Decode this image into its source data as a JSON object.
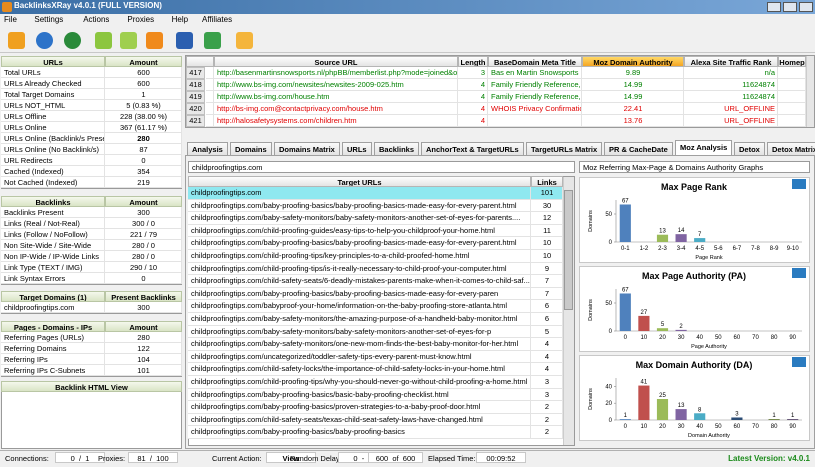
{
  "window": {
    "title": "BacklinksXRay v4.0.1 (FULL VERSION)"
  },
  "menu": [
    "File",
    "Settings",
    "Actions",
    "Proxies",
    "Help",
    "Affiliates"
  ],
  "left_tables": [
    {
      "headers": [
        "URLs",
        "Amount"
      ],
      "bold_row": 6,
      "rows": [
        [
          "Total URLs",
          "600"
        ],
        [
          "URLs Already Checked",
          "600"
        ],
        [
          "Total Target Domains",
          "1"
        ],
        [
          "URLs NOT_HTML",
          "5 (0.83 %)"
        ],
        [
          "URLs Offline",
          "228 (38.00 %)"
        ],
        [
          "URLs Online",
          "367 (61.17 %)"
        ],
        [
          "URLs Online (Backlink/s Present)",
          "280"
        ],
        [
          "URLs Online (No Backlink/s)",
          "87"
        ],
        [
          "URL Redirects",
          "0"
        ],
        [
          "Cached (Indexed)",
          "354"
        ],
        [
          "Not Cached (Indexed)",
          "219"
        ]
      ]
    },
    {
      "headers": [
        "Backlinks",
        "Amount"
      ],
      "rows": [
        [
          "Backlinks Present",
          "300"
        ],
        [
          "Links (Real / Not-Real)",
          "300 / 0"
        ],
        [
          "Links (Follow / NoFollow)",
          "221 / 79"
        ],
        [
          "Non Site-Wide / Site-Wide",
          "280 / 0"
        ],
        [
          "Non IP-Wide / IP-Wide Links",
          "280 / 0"
        ],
        [
          "Link Type (TEXT / IMG)",
          "290 / 10"
        ],
        [
          "Link Syntax Errors",
          "0"
        ]
      ]
    },
    {
      "headers": [
        "Target Domains (1)",
        "Present Backlinks"
      ],
      "rows": [
        [
          "childproofingtips.com",
          "300"
        ]
      ]
    },
    {
      "headers": [
        "Pages - Domains - IPs",
        "Amount"
      ],
      "rows": [
        [
          "Referring Pages (URLs)",
          "280"
        ],
        [
          "Referring Domains",
          "122"
        ],
        [
          "Referring IPs",
          "104"
        ],
        [
          "Referring IPs C-Subnets",
          "101"
        ]
      ]
    }
  ],
  "html_view": {
    "title": "Backlink HTML View"
  },
  "grid": {
    "headers": [
      "Source URL",
      "Length",
      "BaseDomain Meta Title",
      "Moz Domain Authority",
      "Alexa Site Traffic Rank",
      "Homep"
    ],
    "highlight": 3,
    "rows": [
      {
        "num": "417",
        "color": "#008000",
        "cells": [
          "http://basenmartinsnowsports.nl/phpBB/memberlist.php?mode=joined&orde...",
          "3",
          "Bas en Martin Snowsports",
          "9.89",
          "n/a",
          ""
        ]
      },
      {
        "num": "418",
        "color": "#008000",
        "cells": [
          "http://www.bs-img.com/newsites/newsites-2009-025.htm",
          "4",
          "Family Friendly Reference, ...",
          "14.99",
          "11624874",
          ""
        ]
      },
      {
        "num": "419",
        "color": "#008000",
        "cells": [
          "http://www.bs-img.com/house.htm",
          "4",
          "Family Friendly Reference, ...",
          "14.99",
          "11624874",
          ""
        ]
      },
      {
        "num": "420",
        "color": "#e00000",
        "cells": [
          "http://bs-img.com@contactprivacy.com/house.htm",
          "4",
          "WHOIS Privacy Confirmation",
          "22.41",
          "URL_OFFLINE",
          ""
        ]
      },
      {
        "num": "421",
        "color": "#e00000",
        "cells": [
          "http://halosafetysystems.com/children.htm",
          "4",
          "",
          "13.76",
          "URL_OFFLINE",
          ""
        ]
      }
    ]
  },
  "tabs": {
    "items": [
      "Analysis",
      "Domains",
      "Domains Matrix",
      "URLs",
      "Backlinks",
      "AnchorText & TargetURLs",
      "TargetURLs Matrix",
      "PR & CacheDate",
      "Moz Analysis",
      "Detox",
      "Detox Matrix"
    ],
    "active": 8
  },
  "targets": {
    "dropdown": "childproofingtips.com",
    "headers": [
      "Target URLs",
      "Links"
    ],
    "selected": 0,
    "rows": [
      [
        "childproofingtips.com",
        "101"
      ],
      [
        "childproofingtips.com/baby-proofing-basics/baby-proofing-basics-made-easy-for-every-parent.html",
        "30"
      ],
      [
        "childproofingtips.com/baby-safety-monitors/baby-safety-monitors-another-set-of-eyes-for-parents....",
        "12"
      ],
      [
        "childproofingtips.com/child-proofing-guides/easy-tips-to-help-you-childproof-your-home.html",
        "11"
      ],
      [
        "childproofingtips.com/baby-proofing-basics/baby-proofing-basics-made-easy-for-every-parent.html",
        "10"
      ],
      [
        "childproofingtips.com/child-proofing-tips/key-principles-to-a-child-proofed-home.html",
        "10"
      ],
      [
        "childproofingtips.com/child-proofing-tips/is-it-really-necessary-to-child-proof-your-computer.html",
        "9"
      ],
      [
        "childproofingtips.com/child-safety-seats/6-deadly-mistakes-parents-make-when-it-comes-to-child-saf...",
        "7"
      ],
      [
        "childproofingtips.com/baby-proofing-basics/baby-proofing-basics-made-easy-for-every-paren",
        "7"
      ],
      [
        "childproofingtips.com/babyproof-your-home/information-on-the-baby-proofing-store-atlanta.html",
        "6"
      ],
      [
        "childproofingtips.com/baby-safety-monitors/the-amazing-purpose-of-a-handheld-baby-monitor.html",
        "6"
      ],
      [
        "childproofingtips.com/baby-safety-monitors/baby-safety-monitors-another-set-of-eyes-for-p",
        "5"
      ],
      [
        "childproofingtips.com/baby-safety-monitors/one-new-mom-finds-the-best-baby-monitor-for-her.html",
        "4"
      ],
      [
        "childproofingtips.com/uncategorized/toddler-safety-tips-every-parent-must-know.html",
        "4"
      ],
      [
        "childproofingtips.com/child-safety-locks/the-importance-of-child-safety-locks-in-your-home.html",
        "4"
      ],
      [
        "childproofingtips.com/child-proofing-tips/why-you-should-never-go-without-child-proofing-a-home.html",
        "3"
      ],
      [
        "childproofingtips.com/baby-proofing-basics/basic-baby-proofing-checklist.html",
        "3"
      ],
      [
        "childproofingtips.com/baby-proofing-basics/proven-strategies-to-a-baby-proof-door.html",
        "2"
      ],
      [
        "childproofingtips.com/child-safety-seats/texas-child-seat-safety-laws-have-changed.html",
        "2"
      ],
      [
        "childproofingtips.com/baby-proofing-basics/baby-proofing-basics",
        "2"
      ]
    ]
  },
  "graphs": {
    "dropdown": "Moz Referring Max-Page & Domains Authority Graphs",
    "charts": [
      {
        "type": "bar",
        "title": "Max Page Rank",
        "xlabel": "Page Rank",
        "ylabel": "Domains",
        "categories": [
          "0-1",
          "1-2",
          "2-3",
          "3-4",
          "4-5",
          "5-6",
          "6-7",
          "7-8",
          "8-9",
          "9-10"
        ],
        "values": [
          67,
          0,
          13,
          14,
          7,
          0,
          0,
          0,
          0,
          0
        ],
        "colors": [
          "#4f81bd",
          "#c0504d",
          "#9bbb59",
          "#8064a2",
          "#4bacc6",
          "#f79646",
          "#2c4d75",
          "#772c2a",
          "#5f7530",
          "#4d3b62"
        ],
        "ylim": [
          0,
          75
        ],
        "yticks": [
          0,
          50
        ]
      },
      {
        "type": "bar",
        "title": "Max Page Authority (PA)",
        "xlabel": "Page Authority",
        "ylabel": "Domains",
        "categories": [
          "0",
          "10",
          "20",
          "30",
          "40",
          "50",
          "60",
          "70",
          "80",
          "90"
        ],
        "values": [
          67,
          27,
          5,
          2,
          0,
          0,
          0,
          0,
          0,
          0
        ],
        "colors": [
          "#4f81bd",
          "#c0504d",
          "#9bbb59",
          "#8064a2",
          "#4bacc6",
          "#f79646",
          "#2c4d75",
          "#772c2a",
          "#5f7530",
          "#4d3b62"
        ],
        "ylim": [
          0,
          75
        ],
        "yticks": [
          0,
          50
        ]
      },
      {
        "type": "bar",
        "title": "Max Domain Authority (DA)",
        "xlabel": "Domain Authority",
        "ylabel": "Domains",
        "categories": [
          "0",
          "10",
          "20",
          "30",
          "40",
          "50",
          "60",
          "70",
          "80",
          "90"
        ],
        "values": [
          1,
          41,
          25,
          13,
          8,
          0,
          3,
          0,
          1,
          1
        ],
        "colors": [
          "#4f81bd",
          "#c0504d",
          "#9bbb59",
          "#8064a2",
          "#4bacc6",
          "#f79646",
          "#2c4d75",
          "#772c2a",
          "#5f7530",
          "#4d3b62"
        ],
        "ylim": [
          0,
          50
        ],
        "yticks": [
          0,
          20,
          40
        ]
      }
    ]
  },
  "status": {
    "items": [
      {
        "label": "Connections:",
        "value": "0  /  1"
      },
      {
        "label": "Proxies:",
        "value": "81  /  100"
      },
      {
        "label": "Current Action:",
        "value": "View"
      },
      {
        "label": "Random Delay:",
        "value": "0  -  0"
      },
      {
        "label": "",
        "value": "600  of  600"
      },
      {
        "label": "Elapsed Time:",
        "value": "00:09:52"
      }
    ],
    "version": "Latest Version: v4.0.1"
  }
}
